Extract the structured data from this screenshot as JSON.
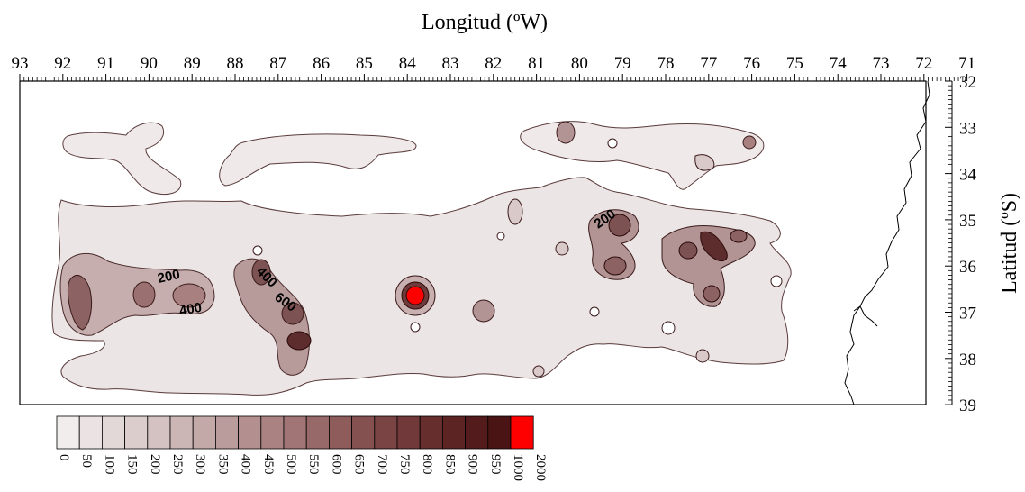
{
  "map": {
    "x_axis_title": "Longitud (ºW)",
    "y_axis_title": "Latitud (ºS)",
    "longitude_ticks": [
      "93",
      "92",
      "91",
      "90",
      "89",
      "88",
      "87",
      "86",
      "85",
      "84",
      "83",
      "82",
      "81",
      "80",
      "79",
      "78",
      "77",
      "76",
      "75",
      "74",
      "73",
      "72",
      "71"
    ],
    "latitude_ticks": [
      "32",
      "33",
      "34",
      "35",
      "36",
      "37",
      "38",
      "39"
    ],
    "contour_labels": [
      "200",
      "400",
      "400",
      "600",
      "200"
    ]
  },
  "legend": {
    "labels": [
      "0",
      "50",
      "100",
      "150",
      "200",
      "250",
      "300",
      "350",
      "400",
      "450",
      "500",
      "550",
      "600",
      "650",
      "700",
      "750",
      "800",
      "850",
      "900",
      "950",
      "1000",
      "2000"
    ],
    "colors": [
      "#f1eded",
      "#ebe3e3",
      "#e3d8d8",
      "#dccdcd",
      "#d4c1c1",
      "#ccb5b5",
      "#c4a9a9",
      "#bb9c9c",
      "#b38f8f",
      "#aa8282",
      "#a17575",
      "#986969",
      "#8f5c5c",
      "#855050",
      "#7b4444",
      "#713939",
      "#672e2e",
      "#5d2424",
      "#531b1b",
      "#4a1414",
      "#ff0000"
    ]
  }
}
